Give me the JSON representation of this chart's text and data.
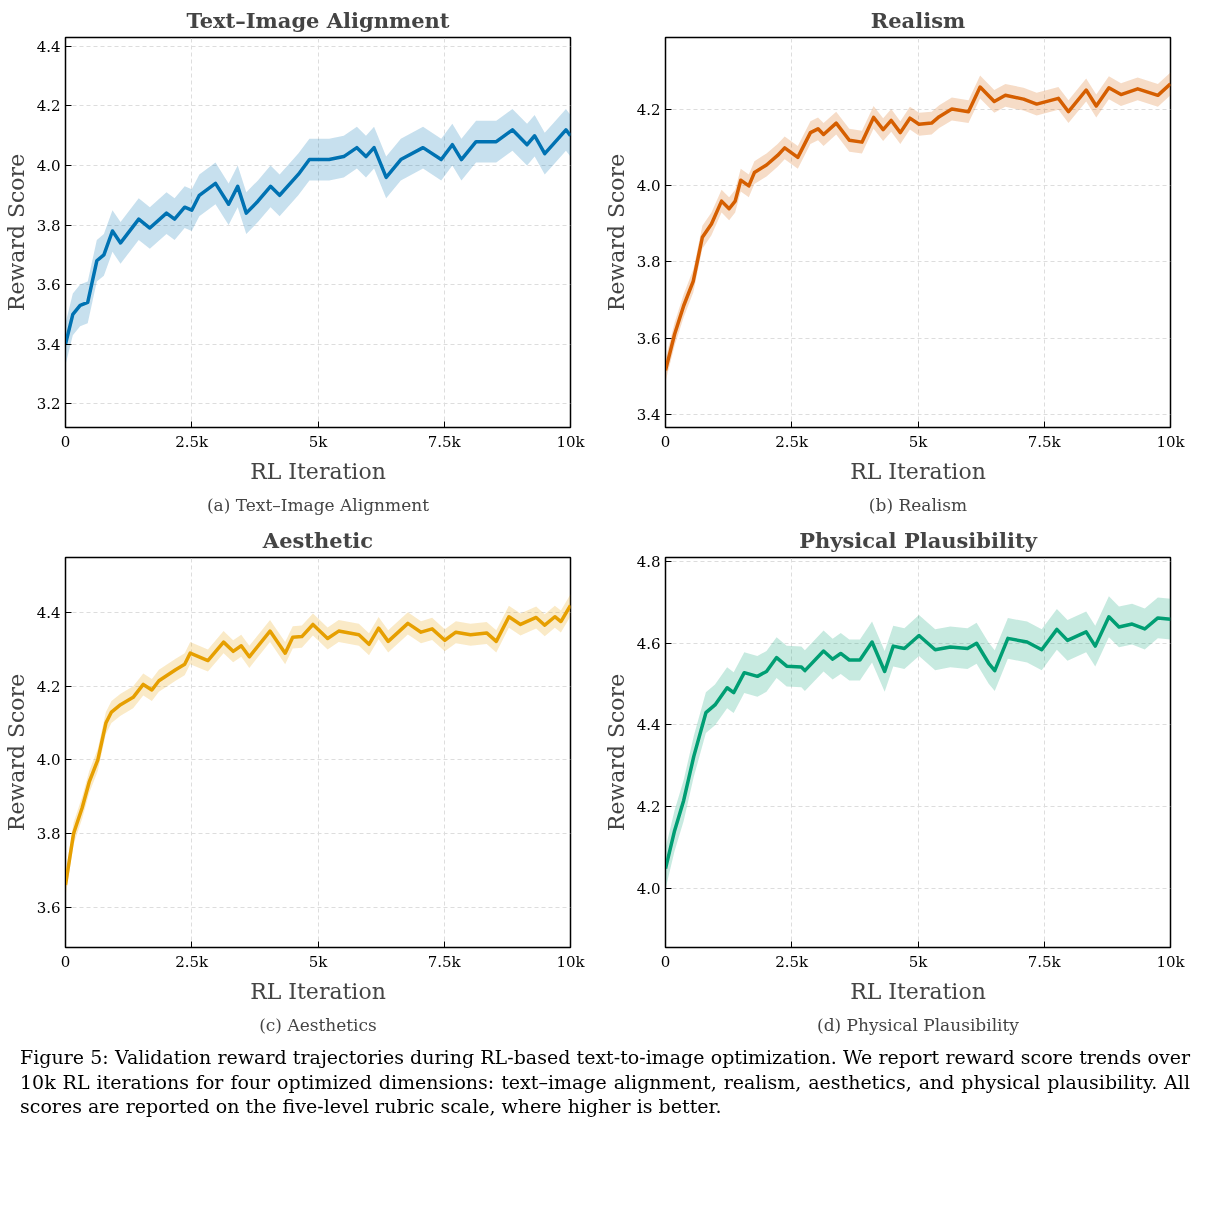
{
  "chart_data": [
    {
      "type": "line",
      "title": "Text–Image Alignment",
      "xlabel": "RL Iteration",
      "ylabel": "Reward Score",
      "annotations": [
        "(a) Text–Image Alignment"
      ],
      "grid": true,
      "xlim": [
        0,
        10000
      ],
      "xticks": [
        {
          "value": 0,
          "label": "0"
        },
        {
          "value": 2500,
          "label": "2.5k"
        },
        {
          "value": 5000,
          "label": "5k"
        },
        {
          "value": 7500,
          "label": "7.5k"
        },
        {
          "value": 10000,
          "label": "10k"
        }
      ],
      "ylim": [
        3.12,
        4.43
      ],
      "yticks": [
        {
          "value": 3.2,
          "label": "3.2"
        },
        {
          "value": 3.4,
          "label": "3.4"
        },
        {
          "value": 3.6,
          "label": "3.6"
        },
        {
          "value": 3.8,
          "label": "3.8"
        },
        {
          "value": 4.0,
          "label": "4.0"
        },
        {
          "value": 4.2,
          "label": "4.2"
        },
        {
          "value": 4.4,
          "label": "4.4"
        }
      ],
      "series": [
        {
          "color": "#0072b2",
          "x": [
            0,
            145,
            290,
            440,
            620,
            760,
            930,
            1090,
            1450,
            1670,
            2000,
            2160,
            2360,
            2500,
            2650,
            2970,
            3230,
            3410,
            3580,
            3810,
            4060,
            4240,
            4610,
            4830,
            5220,
            5510,
            5770,
            5950,
            6110,
            6350,
            6640,
            7080,
            7440,
            7660,
            7840,
            8130,
            8530,
            8850,
            9140,
            9290,
            9490,
            9650,
            9910,
            10000
          ],
          "values": [
            3.4,
            3.5,
            3.53,
            3.54,
            3.68,
            3.7,
            3.78,
            3.74,
            3.82,
            3.79,
            3.84,
            3.82,
            3.86,
            3.85,
            3.9,
            3.94,
            3.87,
            3.93,
            3.84,
            3.88,
            3.93,
            3.9,
            3.97,
            4.02,
            4.02,
            4.03,
            4.06,
            4.03,
            4.06,
            3.96,
            4.02,
            4.06,
            4.02,
            4.07,
            4.02,
            4.08,
            4.08,
            4.12,
            4.07,
            4.1,
            4.04,
            4.07,
            4.12,
            4.1
          ],
          "lower": [
            3.33,
            3.43,
            3.46,
            3.47,
            3.61,
            3.63,
            3.71,
            3.67,
            3.75,
            3.72,
            3.77,
            3.75,
            3.79,
            3.78,
            3.83,
            3.87,
            3.8,
            3.86,
            3.77,
            3.81,
            3.86,
            3.83,
            3.9,
            3.95,
            3.95,
            3.96,
            3.99,
            3.96,
            3.99,
            3.89,
            3.95,
            3.99,
            3.95,
            4.0,
            3.95,
            4.01,
            4.01,
            4.05,
            4.0,
            4.03,
            3.97,
            4.0,
            4.05,
            4.03
          ],
          "upper": [
            3.47,
            3.57,
            3.6,
            3.61,
            3.75,
            3.77,
            3.85,
            3.81,
            3.89,
            3.86,
            3.91,
            3.89,
            3.93,
            3.92,
            3.97,
            4.01,
            3.94,
            4.0,
            3.91,
            3.95,
            4.0,
            3.97,
            4.04,
            4.09,
            4.09,
            4.1,
            4.13,
            4.1,
            4.13,
            4.03,
            4.09,
            4.13,
            4.09,
            4.14,
            4.09,
            4.15,
            4.15,
            4.19,
            4.14,
            4.17,
            4.11,
            4.14,
            4.19,
            4.17
          ]
        }
      ]
    },
    {
      "type": "line",
      "title": "Realism",
      "xlabel": "RL Iteration",
      "ylabel": "Reward Score",
      "annotations": [
        "(b) Realism"
      ],
      "grid": true,
      "xlim": [
        0,
        10000
      ],
      "xticks": [
        {
          "value": 0,
          "label": "0"
        },
        {
          "value": 2500,
          "label": "2.5k"
        },
        {
          "value": 5000,
          "label": "5k"
        },
        {
          "value": 7500,
          "label": "7.5k"
        },
        {
          "value": 10000,
          "label": "10k"
        }
      ],
      "ylim": [
        3.365,
        4.39
      ],
      "yticks": [
        {
          "value": 3.4,
          "label": "3.4"
        },
        {
          "value": 3.6,
          "label": "3.6"
        },
        {
          "value": 3.8,
          "label": "3.8"
        },
        {
          "value": 4.0,
          "label": "4.0"
        },
        {
          "value": 4.2,
          "label": "4.2"
        }
      ],
      "series": [
        {
          "color": "#d55e00",
          "x": [
            0,
            180,
            360,
            550,
            730,
            910,
            1110,
            1260,
            1380,
            1490,
            1650,
            1760,
            2000,
            2220,
            2360,
            2620,
            2870,
            3020,
            3130,
            3380,
            3640,
            3890,
            4120,
            4310,
            4470,
            4650,
            4840,
            5020,
            5270,
            5420,
            5670,
            6000,
            6230,
            6510,
            6730,
            7090,
            7350,
            7780,
            7980,
            8330,
            8530,
            8780,
            9020,
            9350,
            9750,
            10000
          ],
          "values": [
            3.515,
            3.61,
            3.685,
            3.75,
            3.865,
            3.9,
            3.96,
            3.94,
            3.96,
            4.015,
            4.0,
            4.035,
            4.055,
            4.08,
            4.1,
            4.075,
            4.14,
            4.15,
            4.135,
            4.165,
            4.12,
            4.115,
            4.18,
            4.148,
            4.172,
            4.14,
            4.178,
            4.162,
            4.165,
            4.182,
            4.202,
            4.195,
            4.26,
            4.222,
            4.238,
            4.228,
            4.215,
            4.23,
            4.195,
            4.252,
            4.21,
            4.258,
            4.24,
            4.255,
            4.238,
            4.268
          ],
          "lower": [
            3.485,
            3.58,
            3.655,
            3.72,
            3.835,
            3.87,
            3.93,
            3.91,
            3.93,
            3.985,
            3.97,
            4.005,
            4.025,
            4.05,
            4.07,
            4.045,
            4.11,
            4.12,
            4.105,
            4.135,
            4.09,
            4.085,
            4.15,
            4.118,
            4.142,
            4.11,
            4.148,
            4.132,
            4.135,
            4.152,
            4.172,
            4.165,
            4.23,
            4.192,
            4.208,
            4.198,
            4.185,
            4.2,
            4.165,
            4.222,
            4.18,
            4.228,
            4.21,
            4.225,
            4.208,
            4.238
          ],
          "upper": [
            3.545,
            3.64,
            3.715,
            3.78,
            3.895,
            3.93,
            3.99,
            3.97,
            3.99,
            4.045,
            4.03,
            4.065,
            4.085,
            4.11,
            4.13,
            4.105,
            4.17,
            4.18,
            4.165,
            4.195,
            4.15,
            4.145,
            4.21,
            4.178,
            4.202,
            4.17,
            4.208,
            4.192,
            4.195,
            4.212,
            4.232,
            4.225,
            4.29,
            4.252,
            4.268,
            4.258,
            4.245,
            4.26,
            4.225,
            4.282,
            4.24,
            4.288,
            4.27,
            4.285,
            4.268,
            4.298
          ]
        }
      ]
    },
    {
      "type": "line",
      "title": "Aesthetic",
      "xlabel": "RL Iteration",
      "ylabel": "Reward Score",
      "annotations": [
        "(c) Aesthetics"
      ],
      "grid": true,
      "xlim": [
        0,
        10000
      ],
      "xticks": [
        {
          "value": 0,
          "label": "0"
        },
        {
          "value": 2500,
          "label": "2.5k"
        },
        {
          "value": 5000,
          "label": "5k"
        },
        {
          "value": 7500,
          "label": "7.5k"
        },
        {
          "value": 10000,
          "label": "10k"
        }
      ],
      "ylim": [
        3.49,
        4.55
      ],
      "yticks": [
        {
          "value": 3.6,
          "label": "3.6"
        },
        {
          "value": 3.8,
          "label": "3.8"
        },
        {
          "value": 4.0,
          "label": "4.0"
        },
        {
          "value": 4.2,
          "label": "4.2"
        },
        {
          "value": 4.4,
          "label": "4.4"
        }
      ],
      "series": [
        {
          "color": "#e69f00",
          "x": [
            0,
            160,
            330,
            470,
            640,
            800,
            910,
            1090,
            1340,
            1540,
            1710,
            1850,
            2180,
            2360,
            2470,
            2820,
            3130,
            3320,
            3480,
            3640,
            4050,
            4350,
            4500,
            4680,
            4900,
            5190,
            5410,
            5810,
            6010,
            6200,
            6390,
            6780,
            7040,
            7260,
            7510,
            7730,
            8020,
            8340,
            8530,
            8780,
            9010,
            9320,
            9490,
            9690,
            9810,
            10000
          ],
          "values": [
            3.66,
            3.8,
            3.87,
            3.94,
            4.0,
            4.1,
            4.13,
            4.15,
            4.17,
            4.205,
            4.19,
            4.215,
            4.245,
            4.26,
            4.29,
            4.27,
            4.32,
            4.295,
            4.31,
            4.28,
            4.35,
            4.29,
            4.333,
            4.335,
            4.368,
            4.33,
            4.35,
            4.34,
            4.314,
            4.358,
            4.322,
            4.371,
            4.347,
            4.356,
            4.325,
            4.347,
            4.34,
            4.345,
            4.322,
            4.389,
            4.368,
            4.387,
            4.366,
            4.389,
            4.376,
            4.42
          ],
          "lower": [
            3.63,
            3.77,
            3.84,
            3.91,
            3.97,
            4.07,
            4.1,
            4.12,
            4.14,
            4.175,
            4.16,
            4.185,
            4.215,
            4.23,
            4.26,
            4.24,
            4.29,
            4.265,
            4.28,
            4.25,
            4.32,
            4.26,
            4.303,
            4.305,
            4.338,
            4.3,
            4.32,
            4.31,
            4.284,
            4.328,
            4.292,
            4.341,
            4.317,
            4.326,
            4.295,
            4.317,
            4.31,
            4.315,
            4.292,
            4.359,
            4.338,
            4.357,
            4.336,
            4.359,
            4.346,
            4.39
          ],
          "upper": [
            3.69,
            3.83,
            3.9,
            3.97,
            4.03,
            4.13,
            4.16,
            4.18,
            4.2,
            4.235,
            4.22,
            4.245,
            4.275,
            4.29,
            4.32,
            4.3,
            4.35,
            4.325,
            4.34,
            4.31,
            4.38,
            4.32,
            4.363,
            4.365,
            4.398,
            4.36,
            4.38,
            4.37,
            4.344,
            4.388,
            4.352,
            4.401,
            4.377,
            4.386,
            4.355,
            4.377,
            4.37,
            4.375,
            4.352,
            4.419,
            4.398,
            4.417,
            4.396,
            4.419,
            4.406,
            4.45
          ]
        }
      ]
    },
    {
      "type": "line",
      "title": "Physical Plausibility",
      "xlabel": "RL Iteration",
      "ylabel": "Reward Score",
      "annotations": [
        "(d) Physical Plausibility",
        "Figure 5: Validation reward trajectories during RL-based text-to-image optimization. We report reward score trends over 10k RL iterations for four optimized dimensions: text–image alignment, realism, aesthetics, and physical plausibility. All scores are reported on the five-level rubric scale, where higher is better."
      ],
      "grid": true,
      "xlim": [
        0,
        10000
      ],
      "xticks": [
        {
          "value": 0,
          "label": "0"
        },
        {
          "value": 2500,
          "label": "2.5k"
        },
        {
          "value": 5000,
          "label": "5k"
        },
        {
          "value": 7500,
          "label": "7.5k"
        },
        {
          "value": 10000,
          "label": "10k"
        }
      ],
      "ylim": [
        3.855,
        4.81
      ],
      "yticks": [
        {
          "value": 4.0,
          "label": "4.0"
        },
        {
          "value": 4.2,
          "label": "4.2"
        },
        {
          "value": 4.4,
          "label": "4.4"
        },
        {
          "value": 4.6,
          "label": "4.6"
        },
        {
          "value": 4.8,
          "label": "4.8"
        }
      ],
      "series": [
        {
          "color": "#009e73",
          "x": [
            0,
            180,
            360,
            560,
            800,
            980,
            1220,
            1350,
            1560,
            1820,
            2000,
            2200,
            2400,
            2690,
            2760,
            3130,
            3310,
            3470,
            3640,
            3850,
            4090,
            4340,
            4510,
            4730,
            5020,
            5340,
            5640,
            5980,
            6160,
            6400,
            6520,
            6780,
            7160,
            7450,
            7750,
            7960,
            8330,
            8510,
            8780,
            8980,
            9240,
            9490,
            9750,
            10000
          ],
          "values": [
            4.048,
            4.141,
            4.215,
            4.323,
            4.43,
            4.449,
            4.491,
            4.479,
            4.528,
            4.519,
            4.531,
            4.565,
            4.544,
            4.542,
            4.533,
            4.581,
            4.561,
            4.575,
            4.559,
            4.559,
            4.603,
            4.531,
            4.593,
            4.587,
            4.619,
            4.584,
            4.591,
            4.587,
            4.6,
            4.551,
            4.533,
            4.612,
            4.603,
            4.584,
            4.634,
            4.607,
            4.628,
            4.593,
            4.665,
            4.64,
            4.647,
            4.635,
            4.662,
            4.659
          ],
          "lower": [
            3.998,
            4.091,
            4.165,
            4.273,
            4.38,
            4.399,
            4.441,
            4.429,
            4.478,
            4.469,
            4.481,
            4.515,
            4.494,
            4.492,
            4.483,
            4.531,
            4.511,
            4.525,
            4.509,
            4.509,
            4.553,
            4.481,
            4.543,
            4.537,
            4.569,
            4.534,
            4.541,
            4.537,
            4.55,
            4.501,
            4.483,
            4.562,
            4.553,
            4.534,
            4.584,
            4.557,
            4.578,
            4.543,
            4.615,
            4.59,
            4.597,
            4.585,
            4.612,
            4.609
          ],
          "upper": [
            4.098,
            4.191,
            4.265,
            4.373,
            4.48,
            4.499,
            4.541,
            4.529,
            4.578,
            4.569,
            4.581,
            4.615,
            4.594,
            4.592,
            4.583,
            4.631,
            4.611,
            4.625,
            4.609,
            4.609,
            4.653,
            4.581,
            4.643,
            4.637,
            4.669,
            4.634,
            4.641,
            4.637,
            4.65,
            4.601,
            4.583,
            4.662,
            4.653,
            4.634,
            4.684,
            4.657,
            4.678,
            4.643,
            4.715,
            4.69,
            4.697,
            4.685,
            4.712,
            4.709
          ]
        }
      ]
    }
  ]
}
